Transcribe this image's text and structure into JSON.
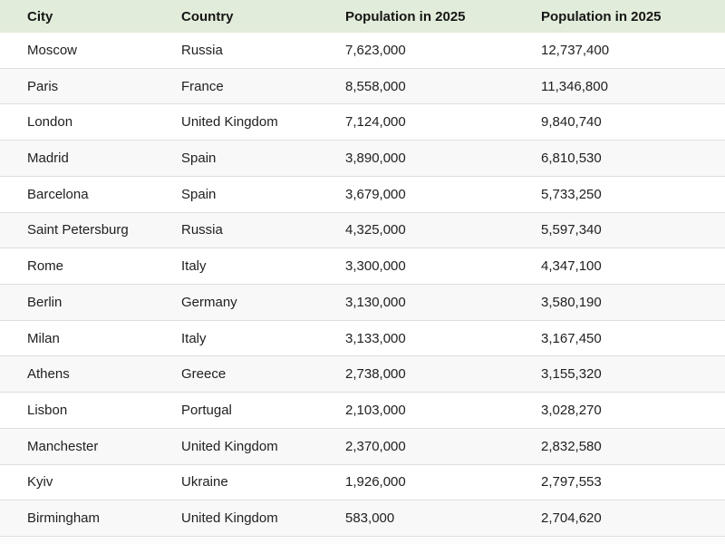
{
  "chart_data": {
    "type": "table",
    "columns": [
      "City",
      "Country",
      "Population in 2025",
      "Population in 2025"
    ],
    "rows": [
      [
        "Moscow",
        "Russia",
        "7,623,000",
        "12,737,400"
      ],
      [
        "Paris",
        "France",
        "8,558,000",
        "11,346,800"
      ],
      [
        "London",
        "United Kingdom",
        "7,124,000",
        "9,840,740"
      ],
      [
        "Madrid",
        "Spain",
        "3,890,000",
        "6,810,530"
      ],
      [
        "Barcelona",
        "Spain",
        "3,679,000",
        "5,733,250"
      ],
      [
        "Saint Petersburg",
        "Russia",
        "4,325,000",
        "5,597,340"
      ],
      [
        "Rome",
        "Italy",
        "3,300,000",
        "4,347,100"
      ],
      [
        "Berlin",
        "Germany",
        "3,130,000",
        "3,580,190"
      ],
      [
        "Milan",
        "Italy",
        "3,133,000",
        "3,167,450"
      ],
      [
        "Athens",
        "Greece",
        "2,738,000",
        "3,155,320"
      ],
      [
        "Lisbon",
        "Portugal",
        "2,103,000",
        "3,028,270"
      ],
      [
        "Manchester",
        "United Kingdom",
        "2,370,000",
        "2,832,580"
      ],
      [
        "Kyiv",
        "Ukraine",
        "1,926,000",
        "2,797,553"
      ],
      [
        "Birmingham",
        "United Kingdom",
        "583,000",
        "2,704,620"
      ]
    ],
    "layout": {
      "header_bg": "#e2ecda",
      "row_alt_bg": "#f8f8f8",
      "row_bg": "#ffffff",
      "border_color": "#dedede",
      "text_color": "#212121"
    }
  }
}
